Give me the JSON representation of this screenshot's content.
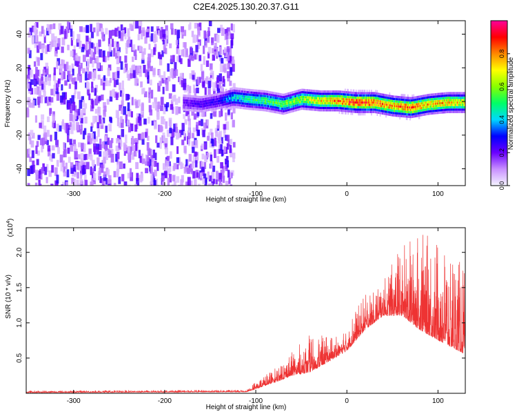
{
  "title": "C2E4.2025.130.20.37.G11",
  "chart_data": [
    {
      "type": "heatmap",
      "ylabel": "Frequency (Hz)",
      "xlabel": "Height of straight line (km)",
      "xlim": [
        -352,
        130
      ],
      "ylim": [
        -50,
        48
      ],
      "xticks": [
        -300,
        -200,
        -100,
        0,
        100
      ],
      "yticks": [
        -40,
        -20,
        0,
        20,
        40
      ],
      "noise_region": {
        "x_from": -352,
        "x_to": -125,
        "description_level": "0.1-0.3"
      },
      "ridge": {
        "x": [
          -180,
          -160,
          -140,
          -125,
          -110,
          -90,
          -70,
          -50,
          -30,
          -10,
          10,
          30,
          50,
          70,
          90,
          110,
          130
        ],
        "freq": [
          0,
          -1,
          1,
          3,
          2,
          1,
          -1,
          2,
          1,
          1,
          0,
          0,
          -2,
          -3,
          -1,
          0,
          0
        ],
        "amplitude": [
          0.22,
          0.25,
          0.28,
          0.45,
          0.5,
          0.55,
          0.6,
          0.65,
          0.75,
          0.85,
          0.95,
          0.9,
          0.85,
          0.9,
          0.8,
          0.8,
          0.75
        ]
      },
      "grid": false
    },
    {
      "type": "colorbar",
      "label": "Normalized spectral amplitude",
      "range": [
        0,
        1
      ],
      "ticks": [
        "0.0",
        "0.2",
        "0.4",
        "0.6",
        "0.8"
      ],
      "colors": [
        "#f4f4ff",
        "#c890ff",
        "#6a00ff",
        "#0000ff",
        "#00d8ff",
        "#00ff66",
        "#88ff00",
        "#ffff00",
        "#ff8800",
        "#ff0000",
        "#ff0099"
      ]
    },
    {
      "type": "line",
      "ylabel": "SNR (10 * v/v)",
      "scale_note": "(x10",
      "scale_exp": "4",
      "xlabel": "Height of straight line (km)",
      "xlim": [
        -352,
        130
      ],
      "ylim": [
        0,
        2.35
      ],
      "xticks": [
        -300,
        -200,
        -100,
        0,
        100
      ],
      "yticks": [
        "0.5",
        "1.0",
        "1.5",
        "2.0"
      ],
      "color": "#ee3333",
      "envelope": {
        "x": [
          -352,
          -110,
          -100,
          -80,
          -60,
          -40,
          -20,
          0,
          20,
          40,
          60,
          80,
          100,
          130
        ],
        "base": [
          0.01,
          0.02,
          0.06,
          0.15,
          0.25,
          0.3,
          0.45,
          0.6,
          0.9,
          1.1,
          1.1,
          0.9,
          0.75,
          0.55
        ],
        "peak": [
          0.04,
          0.05,
          0.18,
          0.35,
          0.6,
          0.85,
          0.8,
          1.0,
          1.4,
          1.6,
          2.1,
          2.3,
          2.2,
          1.8
        ]
      }
    }
  ]
}
